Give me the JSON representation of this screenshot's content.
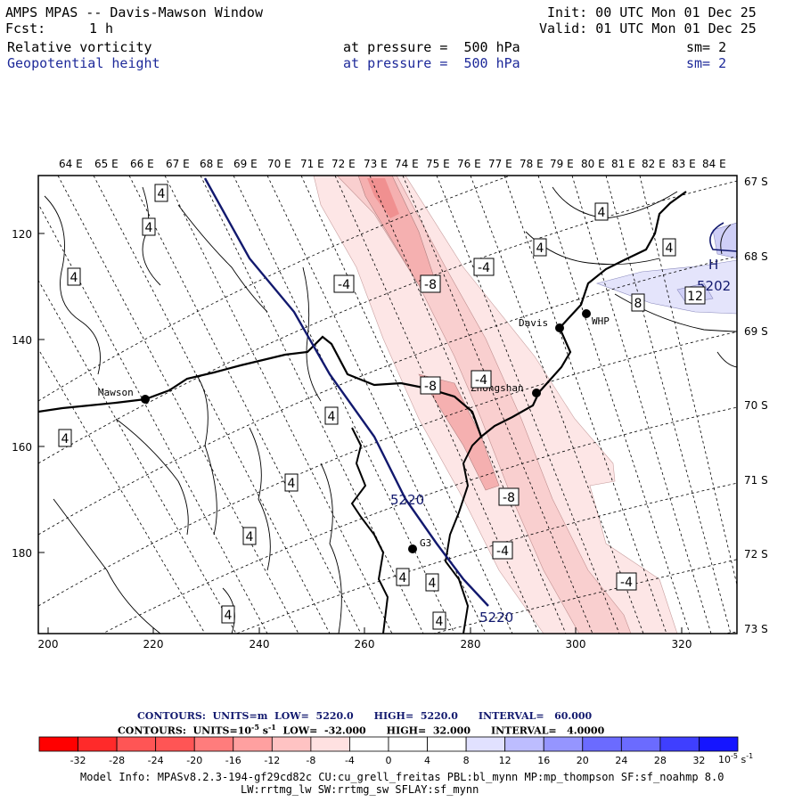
{
  "header": {
    "title": "AMPS MPAS -- Davis-Mawson Window",
    "fcst_label": "Fcst:",
    "fcst_value": "1 h",
    "init": "Init: 00 UTC Mon 01 Dec 25",
    "valid": "Valid: 01 UTC Mon 01 Dec 25",
    "field1": "Relative vorticity",
    "field1_pressure": "at pressure =  500 hPa",
    "field1_sm": "sm= 2",
    "field2": "Geopotential height",
    "field2_pressure": "at pressure =  500 hPa",
    "field2_sm": "sm= 2"
  },
  "map": {
    "top_labels": [
      "64 E",
      "65 E",
      "66 E",
      "67 E",
      "68 E",
      "69 E",
      "70 E",
      "71 E",
      "72 E",
      "73 E",
      "74 E",
      "75 E",
      "76 E",
      "77 E",
      "78 E",
      "79 E",
      "80 E",
      "81 E",
      "82 E",
      "83 E",
      "84 E"
    ],
    "left_labels": [
      "120",
      "140",
      "160",
      "180"
    ],
    "bottom_labels": [
      "200",
      "220",
      "240",
      "260",
      "280",
      "300",
      "320"
    ],
    "right_labels": [
      "67 S",
      "68 S",
      "69 S",
      "70 S",
      "71 S",
      "72 S",
      "73 S"
    ],
    "stations": [
      "Mawson",
      "Davis",
      "WHP",
      "Zhongshan",
      "G3"
    ],
    "height_labels": [
      "5220",
      "5220",
      "5202"
    ],
    "high_marker": "H",
    "contour_labels": [
      "4",
      "4",
      "4",
      "4",
      "4",
      "4",
      "4",
      "4",
      "4",
      "4",
      "4",
      "4",
      "4",
      "4",
      "4",
      "-4",
      "-4",
      "-4",
      "-4",
      "-4",
      "-4",
      "-8",
      "-8",
      "-8",
      "-8",
      "8",
      "12"
    ]
  },
  "footer": {
    "height_contours": "CONTOURS:  UNITS=m  LOW=  5220.0      HIGH=  5220.0      INTERVAL=   60.000",
    "vort_contours_a": "CONTOURS:  UNITS=10",
    "vort_exp": "-5",
    "vort_unit_s": " s",
    "vort_unit_exp": "-1",
    "vort_contours_b": "  LOW=  -32.000      HIGH=  32.000      INTERVAL=   4.0000",
    "model_info_1": "Model Info: MPASv8.2.3-194-gf29cd82c CU:cu_grell_freitas PBL:bl_mynn MP:mp_thompson SF:sf_noahmp 8.0",
    "model_info_2": "LW:rrtmg_lw SW:rrtmg_sw SFLAY:sf_mynn"
  },
  "colorbar": {
    "colors": [
      "#ff0000",
      "#ff2a2a",
      "#ff5555",
      "#ff7c7c",
      "#ffa0a0",
      "#ffc3c3",
      "#ffe1e1",
      "#ffffff",
      "#ffffff",
      "#e1e1ff",
      "#bdbdff",
      "#9595ff",
      "#6b6bff",
      "#3f3fff",
      "#1515ff"
    ],
    "ticks": [
      "-32",
      "-28",
      "-24",
      "-20",
      "-16",
      "-12",
      "-8",
      "-4",
      "0",
      "4",
      "8",
      "12",
      "16",
      "20",
      "24",
      "28",
      "32"
    ],
    "unit": "10",
    "unit_exp": "-5",
    "unit_s": " s",
    "unit_s_exp": "-1"
  }
}
